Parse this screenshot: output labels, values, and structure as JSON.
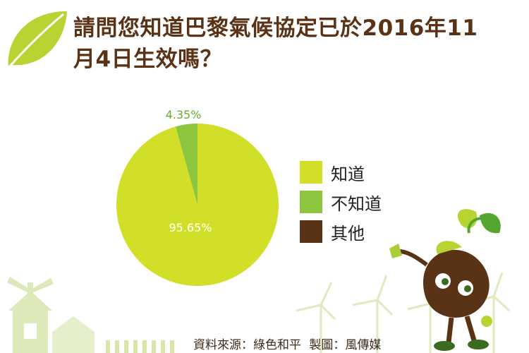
{
  "title_lines": [
    "請問您知道巴黎氣候協定已於2016年11",
    "月4日生效嗎？"
  ],
  "source": {
    "data": "資料來源：綠色和平",
    "design": "製圖：風傳媒"
  },
  "colors": {
    "title": "#5a3215",
    "know": "#d2df28",
    "not_know": "#8cc63f",
    "other": "#5a3215"
  },
  "chart_data": {
    "type": "pie",
    "slices": [
      {
        "label": "知道",
        "value": 95.65,
        "value_label": "95.65%",
        "color": "#d2df28"
      },
      {
        "label": "不知道",
        "value": 4.35,
        "value_label": "4.35%",
        "color": "#8cc63f"
      },
      {
        "label": "其他",
        "value": 0,
        "value_label": "",
        "color": "#5a3215"
      }
    ],
    "legend": "right"
  }
}
